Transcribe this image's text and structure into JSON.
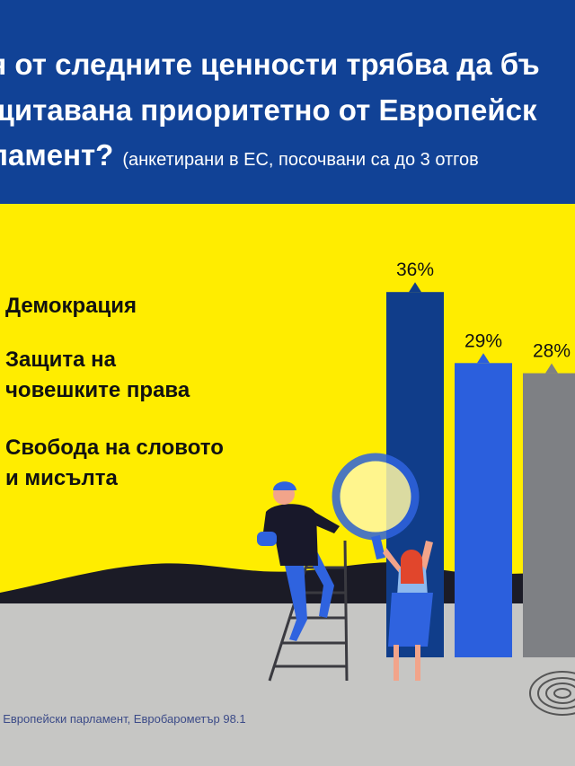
{
  "header": {
    "title_line_1": "я от следните ценности трябва да бъ",
    "title_line_2": "щитавана приоритетно от Европейск",
    "title_line_3": "ламент?",
    "subtitle": "(анкетирани в ЕС, посочвани са до 3 отгов"
  },
  "legend_items": [
    "Демокрация",
    "Защита на\nчовешките права",
    "Свобода на словото\nи мисълта"
  ],
  "chart_data": {
    "type": "bar",
    "categories": [
      "Демокрация",
      "Защита на човешките права",
      "Свобода на словото и мисълта"
    ],
    "values": [
      36,
      29,
      28
    ],
    "value_labels": [
      "36%",
      "29%",
      "28%"
    ],
    "bar_colors": [
      "#103d8a",
      "#2b5fdd",
      "#7e8084"
    ],
    "ylim": [
      0,
      40
    ]
  },
  "source": ": Европейски парламент, Евробарометър 98.1",
  "colors": {
    "header_bg": "#114296",
    "yellow": "#ffed00",
    "ground": "#c6c6c4",
    "hills": "#1b1b26"
  }
}
